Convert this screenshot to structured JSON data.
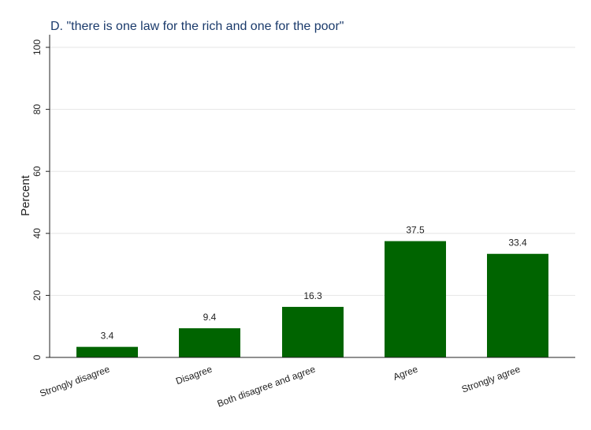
{
  "chart_data": {
    "type": "bar",
    "title": "D. \"there is one law for the rich and one for the poor\"",
    "ylabel": "Percent",
    "xlabel": "",
    "categories": [
      "Strongly disagree",
      "Disagree",
      "Both disagree and agree",
      "Agree",
      "Strongly agree"
    ],
    "values": [
      3.4,
      9.4,
      16.3,
      37.5,
      33.4
    ],
    "value_labels": [
      "3.4",
      "9.4",
      "16.3",
      "37.5",
      "33.4"
    ],
    "yticks": [
      0,
      20,
      40,
      60,
      80,
      100
    ],
    "ylim": [
      0,
      100
    ],
    "grid": true,
    "bar_color": "#006400"
  }
}
